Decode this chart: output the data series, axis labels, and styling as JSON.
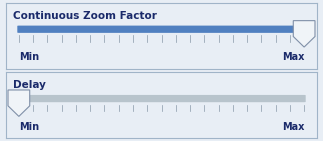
{
  "panel_bg": "#e8eef5",
  "panel_border": "#a0b4c8",
  "track_bg": "#c8d0d8",
  "track_filled": "#5080c0",
  "track_empty": "#b8c4cc",
  "slider_fill": "#f0f4f8",
  "slider_border": "#8090a8",
  "tick_color": "#8898a8",
  "label_color": "#1a2a6a",
  "minmax_color": "#1a2a6a",
  "title1": "Continuous Zoom Factor",
  "title2": "Delay",
  "min_label": "Min",
  "max_label": "Max",
  "slider1_value": 1.0,
  "slider2_value": 0.0,
  "num_ticks": 20,
  "fig_width": 3.23,
  "fig_height": 1.41,
  "dpi": 100
}
